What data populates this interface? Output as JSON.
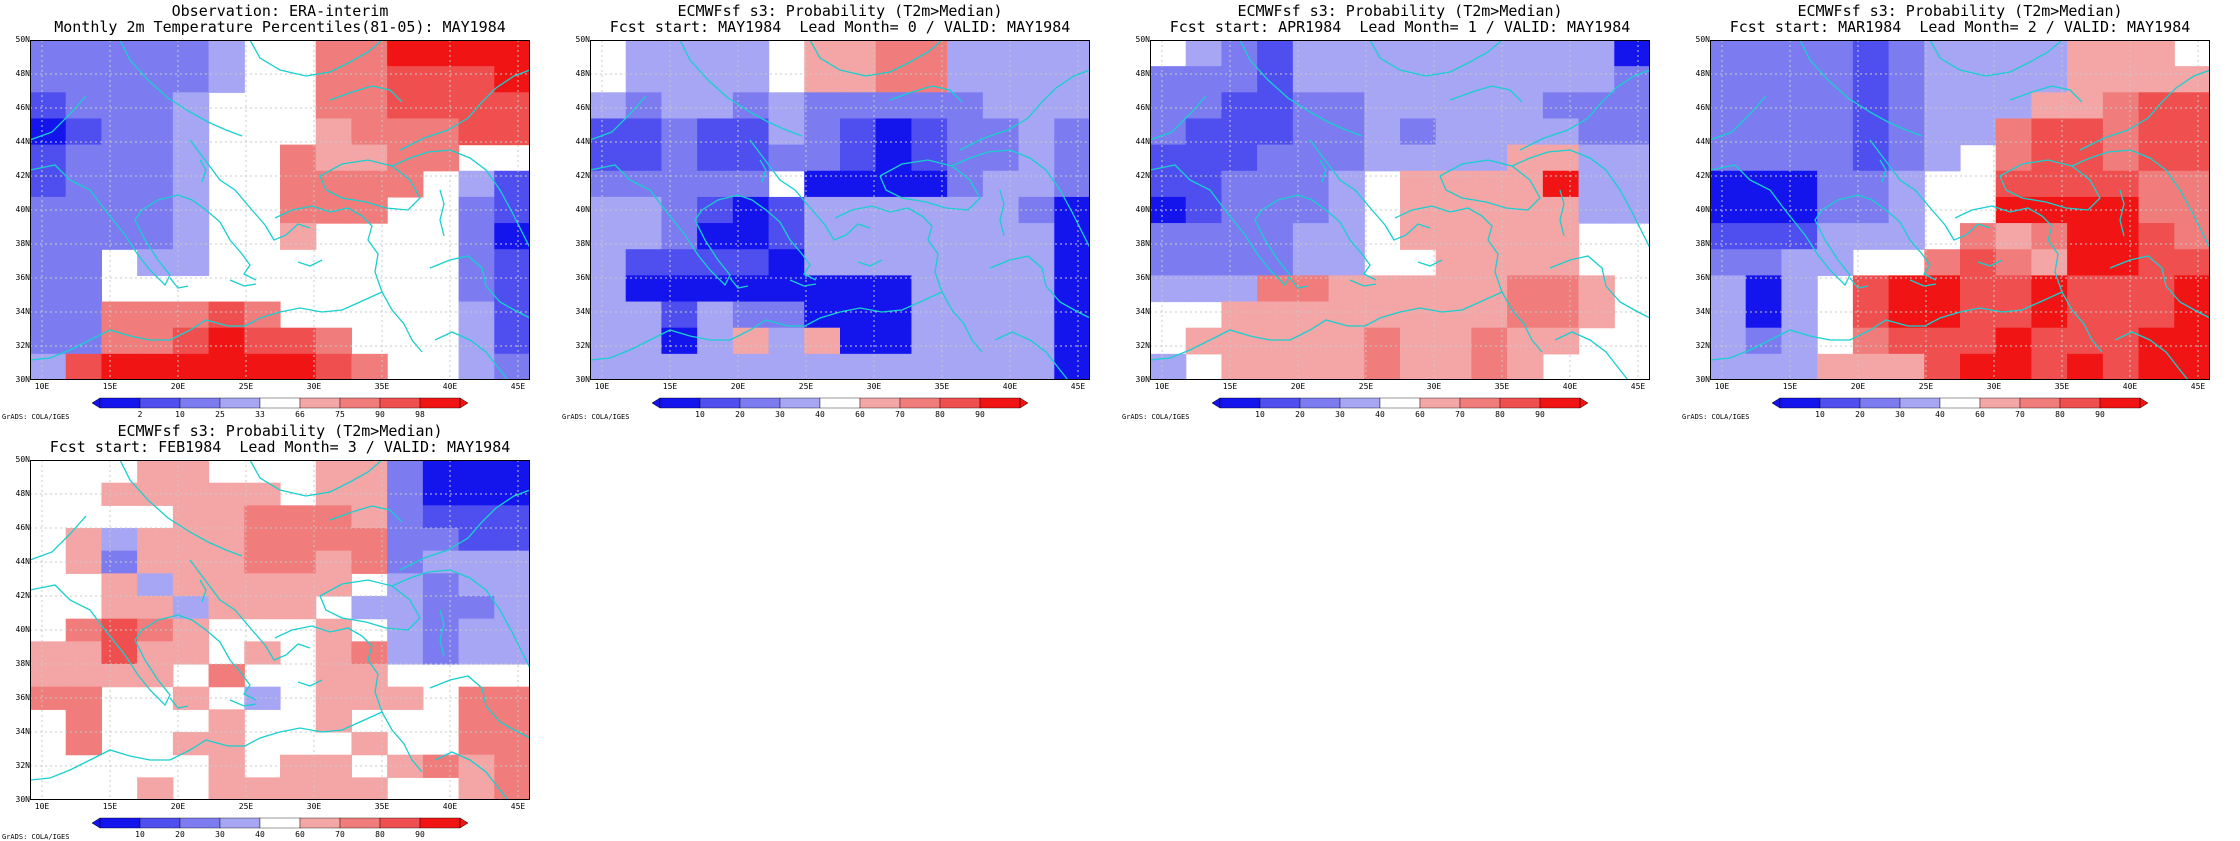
{
  "colors": {
    "b1": "#1414ec",
    "b2": "#4f4ff0",
    "b3": "#7c7cf0",
    "b4": "#a6a6f4",
    "r1": "#f4a6a6",
    "r2": "#f07c7c",
    "r3": "#f04f4f",
    "r4": "#f01414",
    "coast": "#19cfcf",
    "grid": "#c8c8c8"
  },
  "lat_labels": [
    "50N",
    "48N",
    "46N",
    "44N",
    "42N",
    "40N",
    "38N",
    "36N",
    "34N",
    "32N",
    "30N"
  ],
  "lon_labels": [
    "10E",
    "15E",
    "20E",
    "25E",
    "30E",
    "35E",
    "40E",
    "45E"
  ],
  "credit": "GrADS: COLA/IGES",
  "panels": [
    {
      "title1": "Observation: ERA-interim",
      "title2": "Monthly 2m Temperature Percentiles(81-05): MAY1984",
      "cb_labels": [
        "2",
        "10",
        "25",
        "33",
        "66",
        "75",
        "90",
        "98"
      ],
      "grid": [
        "b3b3b3b3b3b4....r2r2r4r4r4r4",
        "b3b3b3b3b3b4....r2r2r3r3r3r4",
        "b2b3b3b3b4......r2r2r3r3r3r3",
        "b1b2b3b3b4......r1r2r2r2r3r3",
        "b2b3b3b3b4....r2r1r1r2r2....",
        "b2b3b3b3b4....r2r2r2r2..b4b2",
        "b3b3b3b3b4....r2r2r2....b3b2",
        "b3b3b3b3b4....r1........b3b1",
        "b3b3..b4b4..............b3b2",
        "b3b3....................b3b2",
        "b3b3r2r2r2r3r2..........b4b2",
        "b3b3r2r2r3r4r3r3r2......b4b2",
        "b4r3r4r4r4r4r4r4r3r2....b4b3"
      ]
    },
    {
      "title1": "ECMWFsf s3: Probability (T2m>Median)",
      "title2": "Fcst start: MAY1984  Lead Month= 0 / VALID: MAY1984",
      "cb_labels": [
        "10",
        "20",
        "30",
        "40",
        "60",
        "70",
        "80",
        "90"
      ],
      "grid": [
        "..b4b4b4b4..r1r1r2r2b4b4b4b4",
        "..b4b4b4b4..r1r1r2r2b4b4b4b4",
        "b4b3b4b4b3b4b3b3b3b3b3b4b4b4",
        "b2b2b3b2b2b4b3b2b1b2b3b3b4b3",
        "b2b2b3b2b2b3b3b2b1b2b3b3b4b3",
        "b3b3b3b3b3..b1b1b1b1b3b4b4b3",
        "b4b4b3b2b1b2b4b4b4b4b4b4b3b1",
        "b4b4b3b1b1b2b4b4b4b4b4b4b4b1",
        "b4b2b2b2b2b1b4b4b4b4b4b4b4b1",
        "b4b1b1b1b1b1b1b1b1b4b4b4b4b1",
        "b4b4b2b4b3b3b1b1b1b4b4b4b4b1",
        "b4b4b1b4r1b4r1b1b1b4b4b4b4b1",
        "b4b4b4b4b4b4b4b4b4b4b4b4b4b1"
      ]
    },
    {
      "title1": "ECMWFsf s3: Probability (T2m>Median)",
      "title2": "Fcst start: APR1984  Lead Month= 1 / VALID: MAY1984",
      "cb_labels": [
        "10",
        "20",
        "30",
        "40",
        "60",
        "70",
        "80",
        "90"
      ],
      "grid": [
        "..b4b3b2b4b4b4b4b4b4b4b4b4b1",
        "b3b3b3b2b4b4b4b4b4b4b4b4b4b3",
        "b3b3b2b2b3b3b4b4b4b4b4b3b3b3",
        "b3b2b2b2b3b3b4b3b4b4b4b4b3b3",
        "b2b2b2b3b3b3b4b4b4b4r1r1b4b4",
        "b2b2b3b3b3b4..r1r1r1r1r4b4b4",
        "b1b2b3b3b3b4..r1r1r1r1r1b4b4",
        "b3b3b3b3b4b4..r1r1r1r1r1....",
        "b3b3b3b3b4b4....r1r1r1r1....",
        "b4b4b4r2r2r1r1r1r1r1r2r2r1..",
        "....r1r1r1r1r1r1r1r1r2r2r1..",
        "..r1r1r1r1r1r2r1r1r2r1r1....",
        "b4..r1r1r1r1r2r1r1r2r1......"
      ]
    },
    {
      "title1": "ECMWFsf s3: Probability (T2m>Median)",
      "title2": "Fcst start: MAR1984  Lead Month= 2 / VALID: MAY1984",
      "cb_labels": [
        "10",
        "20",
        "30",
        "40",
        "60",
        "70",
        "80",
        "90"
      ],
      "grid": [
        "b3b3b3b3b2b3b4b4b4b4r1r1r1..",
        "b3b3b3b3b2b3b4b4b4b4r1r1r1r1",
        "b3b3b3b3b2b3b4b4b4r1r1r2r3r3",
        "b3b3b3b3b2b3b4b4r2r3r3r2r3r3",
        "b3b3b3b3b2b3b4..r2r3r3r2r3r3",
        "b1b1b1b3b3b4....r3r3r3r3r2r2",
        "b1b1b1b3b3b4....r4r4r4r4r2r2",
        "b2b2b2b4b4b4..r2r1r2r4r4r3r2",
        "b3b3b4b4....r2r3r2r1r4r4r3r3",
        "b4b1b4..r3r4r4r3r3r4r3r3r3r4",
        "b4b1b4..r3r4r4r3r3r4r3r3r3r4",
        "b4b3b4..r2r3r3r3r4r3r3r3r4r4",
        "b4b4b4r1r1r1r3r4r4r3r4r3r4r4"
      ]
    },
    {
      "title1": "ECMWFsf s3: Probability (T2m>Median)",
      "title2": "Fcst start: FEB1984  Lead Month= 3 / VALID: MAY1984",
      "cb_labels": [
        "10",
        "20",
        "30",
        "40",
        "60",
        "70",
        "80",
        "90"
      ],
      "grid": [
        "......r1r1......r1r1b3b1b1b1",
        "....r1r1r1r1r1..r1r1b3b1b1b1",
        "........r1r1r2r2r2r1b3b2b2b2",
        "..r1b4r1r1r1r2r2r2r2b3b3b2b2",
        "..r1b3r1r1r1r2r2r1r2b3b4b4b4",
        "....r1b4r1r1r1r1r1..b4b3b4b4",
        "....r1r1b4r1r1r1..b4b4b3b3b4",
        "..r2r3r2r1......r1..b4b3b4b4",
        "r1r1r3r1r1..r1..r1r2b4b3b4b4",
        "r1r1r1r1..r2....r1r1........",
        "r2r2....r1..b4..r1r1r1..r2r2",
        "..r2......r1....r1......r2r2",
        "..r2....r1r1......r1....r2r2",
        "..........r1..r1r1..r1r2r1r2",
        "......r1..r1r1r1r1r1....r1r2"
      ]
    }
  ]
}
